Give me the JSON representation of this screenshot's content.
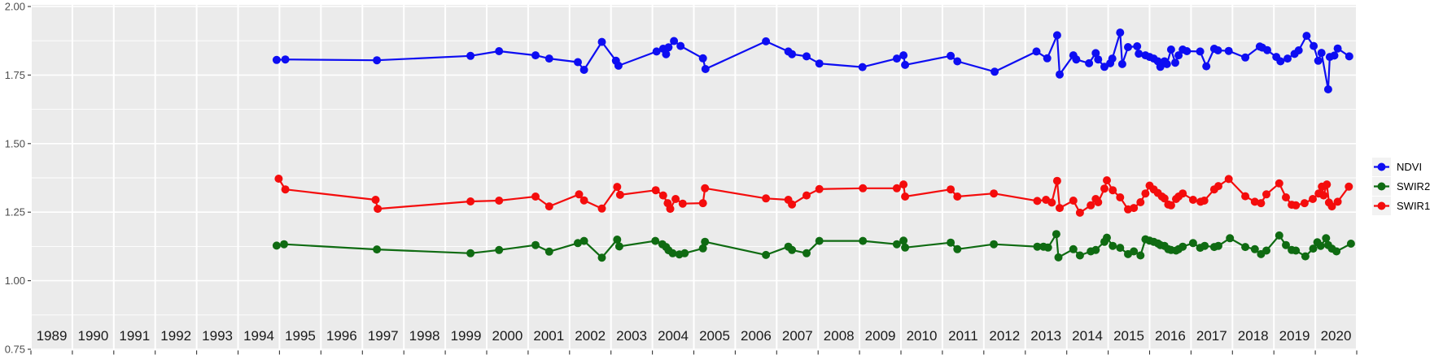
{
  "figure": {
    "description": "Scatter/line time-series plot of spectral index ratios by year, gray paneled background per year, legend at right"
  },
  "y_axis": {
    "ticks": [
      {
        "label": "2.00",
        "value": 2.0
      },
      {
        "label": "1.75",
        "value": 1.75
      },
      {
        "label": "1.50",
        "value": 1.5
      },
      {
        "label": "1.25",
        "value": 1.25
      },
      {
        "label": "1.00",
        "value": 1.0
      },
      {
        "label": "0.75",
        "value": 0.75
      }
    ],
    "minor": [
      1.875,
      1.625,
      1.375,
      1.125,
      0.875
    ],
    "text_color": "#4d4d4d"
  },
  "x_axis": {
    "years": [
      1989,
      1990,
      1991,
      1992,
      1993,
      1994,
      1995,
      1996,
      1997,
      1998,
      1999,
      2000,
      2001,
      2002,
      2003,
      2004,
      2005,
      2006,
      2007,
      2008,
      2009,
      2010,
      2011,
      2012,
      2013,
      2014,
      2015,
      2016,
      2017,
      2018,
      2019,
      2020
    ],
    "text_color": "#1a1a1a"
  },
  "colors": {
    "panel_background": "#ebebeb",
    "gridline": "#ffffff",
    "legend_key_background": "#f2f2f2",
    "tick": "#333333"
  },
  "legend": {
    "position": "right",
    "items": [
      {
        "label": "NDVI",
        "color": "#0d0df2"
      },
      {
        "label": "SWIR2",
        "color": "#0f6b12"
      },
      {
        "label": "SWIR1",
        "color": "#f40c0c"
      }
    ]
  },
  "chart_data": {
    "type": "line",
    "title": "",
    "xlabel": "",
    "ylabel": "",
    "x_unit": "decimal year",
    "xlim": [
      1989,
      2021
    ],
    "ylim": [
      0.75,
      2.0
    ],
    "grid": "horizontal major+minor white on gray panels",
    "legend_position": "right",
    "series": [
      {
        "name": "NDVI",
        "color": "#0d0df2",
        "points": [
          [
            1994.93,
            1.805
          ],
          [
            1995.14,
            1.807
          ],
          [
            1997.35,
            1.804
          ],
          [
            1999.61,
            1.82
          ],
          [
            2000.3,
            1.837
          ],
          [
            2001.18,
            1.822
          ],
          [
            2001.51,
            1.81
          ],
          [
            2002.2,
            1.797
          ],
          [
            2002.35,
            1.769
          ],
          [
            2002.78,
            1.871
          ],
          [
            2003.12,
            1.802
          ],
          [
            2003.18,
            1.784
          ],
          [
            2004.1,
            1.836
          ],
          [
            2004.26,
            1.846
          ],
          [
            2004.33,
            1.826
          ],
          [
            2004.39,
            1.851
          ],
          [
            2004.52,
            1.874
          ],
          [
            2004.68,
            1.856
          ],
          [
            2005.22,
            1.811
          ],
          [
            2005.28,
            1.772
          ],
          [
            2006.74,
            1.873
          ],
          [
            2007.28,
            1.836
          ],
          [
            2007.37,
            1.826
          ],
          [
            2007.72,
            1.818
          ],
          [
            2008.03,
            1.792
          ],
          [
            2009.07,
            1.779
          ],
          [
            2009.9,
            1.81
          ],
          [
            2010.06,
            1.822
          ],
          [
            2010.1,
            1.787
          ],
          [
            2011.2,
            1.82
          ],
          [
            2011.36,
            1.8
          ],
          [
            2012.26,
            1.762
          ],
          [
            2013.27,
            1.836
          ],
          [
            2013.53,
            1.811
          ],
          [
            2013.77,
            1.895
          ],
          [
            2013.83,
            1.752
          ],
          [
            2014.16,
            1.822
          ],
          [
            2014.23,
            1.807
          ],
          [
            2014.54,
            1.793
          ],
          [
            2014.7,
            1.83
          ],
          [
            2014.76,
            1.807
          ],
          [
            2014.91,
            1.78
          ],
          [
            2015.05,
            1.793
          ],
          [
            2015.1,
            1.81
          ],
          [
            2015.29,
            1.905
          ],
          [
            2015.34,
            1.79
          ],
          [
            2015.48,
            1.852
          ],
          [
            2015.7,
            1.855
          ],
          [
            2015.74,
            1.828
          ],
          [
            2015.9,
            1.822
          ],
          [
            2016.0,
            1.816
          ],
          [
            2016.1,
            1.81
          ],
          [
            2016.2,
            1.8
          ],
          [
            2016.26,
            1.78
          ],
          [
            2016.36,
            1.8
          ],
          [
            2016.42,
            1.79
          ],
          [
            2016.52,
            1.843
          ],
          [
            2016.62,
            1.795
          ],
          [
            2016.7,
            1.822
          ],
          [
            2016.8,
            1.843
          ],
          [
            2016.9,
            1.837
          ],
          [
            2017.22,
            1.836
          ],
          [
            2017.37,
            1.782
          ],
          [
            2017.56,
            1.846
          ],
          [
            2017.65,
            1.84
          ],
          [
            2017.91,
            1.838
          ],
          [
            2018.31,
            1.814
          ],
          [
            2018.66,
            1.854
          ],
          [
            2018.72,
            1.85
          ],
          [
            2018.84,
            1.841
          ],
          [
            2019.06,
            1.816
          ],
          [
            2019.16,
            1.8
          ],
          [
            2019.33,
            1.81
          ],
          [
            2019.5,
            1.827
          ],
          [
            2019.6,
            1.84
          ],
          [
            2019.79,
            1.893
          ],
          [
            2019.96,
            1.856
          ],
          [
            2020.07,
            1.802
          ],
          [
            2020.15,
            1.831
          ],
          [
            2020.31,
            1.698
          ],
          [
            2020.35,
            1.816
          ],
          [
            2020.46,
            1.821
          ],
          [
            2020.54,
            1.847
          ],
          [
            2020.82,
            1.818
          ]
        ]
      },
      {
        "name": "SWIR2",
        "color": "#0f6b12",
        "points": [
          [
            1994.93,
            1.128
          ],
          [
            1995.11,
            1.133
          ],
          [
            1997.35,
            1.114
          ],
          [
            1999.61,
            1.1
          ],
          [
            2000.3,
            1.112
          ],
          [
            2001.18,
            1.13
          ],
          [
            2001.51,
            1.106
          ],
          [
            2002.2,
            1.137
          ],
          [
            2002.35,
            1.145
          ],
          [
            2002.78,
            1.084
          ],
          [
            2003.15,
            1.15
          ],
          [
            2003.2,
            1.125
          ],
          [
            2004.07,
            1.145
          ],
          [
            2004.24,
            1.133
          ],
          [
            2004.33,
            1.123
          ],
          [
            2004.39,
            1.111
          ],
          [
            2004.49,
            1.1
          ],
          [
            2004.65,
            1.096
          ],
          [
            2004.78,
            1.1
          ],
          [
            2005.22,
            1.118
          ],
          [
            2005.27,
            1.142
          ],
          [
            2006.74,
            1.094
          ],
          [
            2007.28,
            1.124
          ],
          [
            2007.37,
            1.112
          ],
          [
            2007.72,
            1.1
          ],
          [
            2008.03,
            1.145
          ],
          [
            2009.08,
            1.145
          ],
          [
            2009.9,
            1.133
          ],
          [
            2010.06,
            1.146
          ],
          [
            2010.1,
            1.121
          ],
          [
            2011.2,
            1.139
          ],
          [
            2011.36,
            1.115
          ],
          [
            2012.24,
            1.133
          ],
          [
            2013.29,
            1.124
          ],
          [
            2013.44,
            1.124
          ],
          [
            2013.55,
            1.121
          ],
          [
            2013.75,
            1.17
          ],
          [
            2013.8,
            1.085
          ],
          [
            2014.16,
            1.115
          ],
          [
            2014.32,
            1.092
          ],
          [
            2014.58,
            1.107
          ],
          [
            2014.7,
            1.112
          ],
          [
            2014.91,
            1.142
          ],
          [
            2014.97,
            1.157
          ],
          [
            2015.11,
            1.127
          ],
          [
            2015.29,
            1.12
          ],
          [
            2015.48,
            1.097
          ],
          [
            2015.62,
            1.107
          ],
          [
            2015.78,
            1.092
          ],
          [
            2015.9,
            1.151
          ],
          [
            2016.0,
            1.146
          ],
          [
            2016.1,
            1.142
          ],
          [
            2016.2,
            1.136
          ],
          [
            2016.26,
            1.13
          ],
          [
            2016.36,
            1.127
          ],
          [
            2016.45,
            1.115
          ],
          [
            2016.52,
            1.112
          ],
          [
            2016.64,
            1.11
          ],
          [
            2016.7,
            1.115
          ],
          [
            2016.8,
            1.124
          ],
          [
            2017.05,
            1.137
          ],
          [
            2017.22,
            1.12
          ],
          [
            2017.33,
            1.127
          ],
          [
            2017.56,
            1.123
          ],
          [
            2017.66,
            1.127
          ],
          [
            2017.94,
            1.155
          ],
          [
            2018.31,
            1.123
          ],
          [
            2018.54,
            1.115
          ],
          [
            2018.69,
            1.097
          ],
          [
            2018.82,
            1.11
          ],
          [
            2019.13,
            1.165
          ],
          [
            2019.29,
            1.13
          ],
          [
            2019.43,
            1.112
          ],
          [
            2019.53,
            1.11
          ],
          [
            2019.76,
            1.089
          ],
          [
            2019.95,
            1.117
          ],
          [
            2020.05,
            1.14
          ],
          [
            2020.13,
            1.127
          ],
          [
            2020.26,
            1.155
          ],
          [
            2020.31,
            1.13
          ],
          [
            2020.4,
            1.117
          ],
          [
            2020.51,
            1.107
          ],
          [
            2020.86,
            1.135
          ]
        ]
      },
      {
        "name": "SWIR1",
        "color": "#f40c0c",
        "points": [
          [
            1994.98,
            1.372
          ],
          [
            1995.14,
            1.333
          ],
          [
            1997.32,
            1.295
          ],
          [
            1997.37,
            1.262
          ],
          [
            1999.61,
            1.289
          ],
          [
            2000.3,
            1.292
          ],
          [
            2001.18,
            1.307
          ],
          [
            2001.51,
            1.271
          ],
          [
            2002.23,
            1.315
          ],
          [
            2002.35,
            1.293
          ],
          [
            2002.78,
            1.263
          ],
          [
            2003.15,
            1.342
          ],
          [
            2003.22,
            1.313
          ],
          [
            2004.08,
            1.33
          ],
          [
            2004.26,
            1.311
          ],
          [
            2004.37,
            1.283
          ],
          [
            2004.43,
            1.262
          ],
          [
            2004.56,
            1.298
          ],
          [
            2004.73,
            1.281
          ],
          [
            2005.22,
            1.283
          ],
          [
            2005.27,
            1.337
          ],
          [
            2006.74,
            1.3
          ],
          [
            2007.28,
            1.295
          ],
          [
            2007.37,
            1.278
          ],
          [
            2007.72,
            1.311
          ],
          [
            2008.03,
            1.334
          ],
          [
            2009.08,
            1.337
          ],
          [
            2009.9,
            1.337
          ],
          [
            2010.06,
            1.351
          ],
          [
            2010.1,
            1.307
          ],
          [
            2011.2,
            1.333
          ],
          [
            2011.36,
            1.307
          ],
          [
            2012.24,
            1.318
          ],
          [
            2013.29,
            1.291
          ],
          [
            2013.5,
            1.295
          ],
          [
            2013.64,
            1.285
          ],
          [
            2013.77,
            1.364
          ],
          [
            2013.83,
            1.265
          ],
          [
            2014.16,
            1.292
          ],
          [
            2014.32,
            1.248
          ],
          [
            2014.58,
            1.275
          ],
          [
            2014.7,
            1.298
          ],
          [
            2014.76,
            1.286
          ],
          [
            2014.91,
            1.336
          ],
          [
            2014.97,
            1.366
          ],
          [
            2015.11,
            1.33
          ],
          [
            2015.29,
            1.304
          ],
          [
            2015.48,
            1.26
          ],
          [
            2015.62,
            1.265
          ],
          [
            2015.78,
            1.286
          ],
          [
            2015.9,
            1.318
          ],
          [
            2016.0,
            1.347
          ],
          [
            2016.1,
            1.333
          ],
          [
            2016.2,
            1.32
          ],
          [
            2016.3,
            1.307
          ],
          [
            2016.36,
            1.3
          ],
          [
            2016.45,
            1.278
          ],
          [
            2016.52,
            1.275
          ],
          [
            2016.64,
            1.298
          ],
          [
            2016.7,
            1.307
          ],
          [
            2016.8,
            1.318
          ],
          [
            2017.05,
            1.295
          ],
          [
            2017.23,
            1.288
          ],
          [
            2017.32,
            1.292
          ],
          [
            2017.56,
            1.333
          ],
          [
            2017.66,
            1.345
          ],
          [
            2017.91,
            1.371
          ],
          [
            2018.31,
            1.308
          ],
          [
            2018.54,
            1.288
          ],
          [
            2018.69,
            1.283
          ],
          [
            2018.82,
            1.315
          ],
          [
            2019.13,
            1.355
          ],
          [
            2019.29,
            1.304
          ],
          [
            2019.43,
            1.277
          ],
          [
            2019.53,
            1.275
          ],
          [
            2019.74,
            1.283
          ],
          [
            2019.94,
            1.298
          ],
          [
            2020.08,
            1.318
          ],
          [
            2020.16,
            1.343
          ],
          [
            2020.2,
            1.311
          ],
          [
            2020.28,
            1.351
          ],
          [
            2020.33,
            1.285
          ],
          [
            2020.4,
            1.271
          ],
          [
            2020.54,
            1.288
          ],
          [
            2020.81,
            1.343
          ]
        ]
      }
    ]
  }
}
